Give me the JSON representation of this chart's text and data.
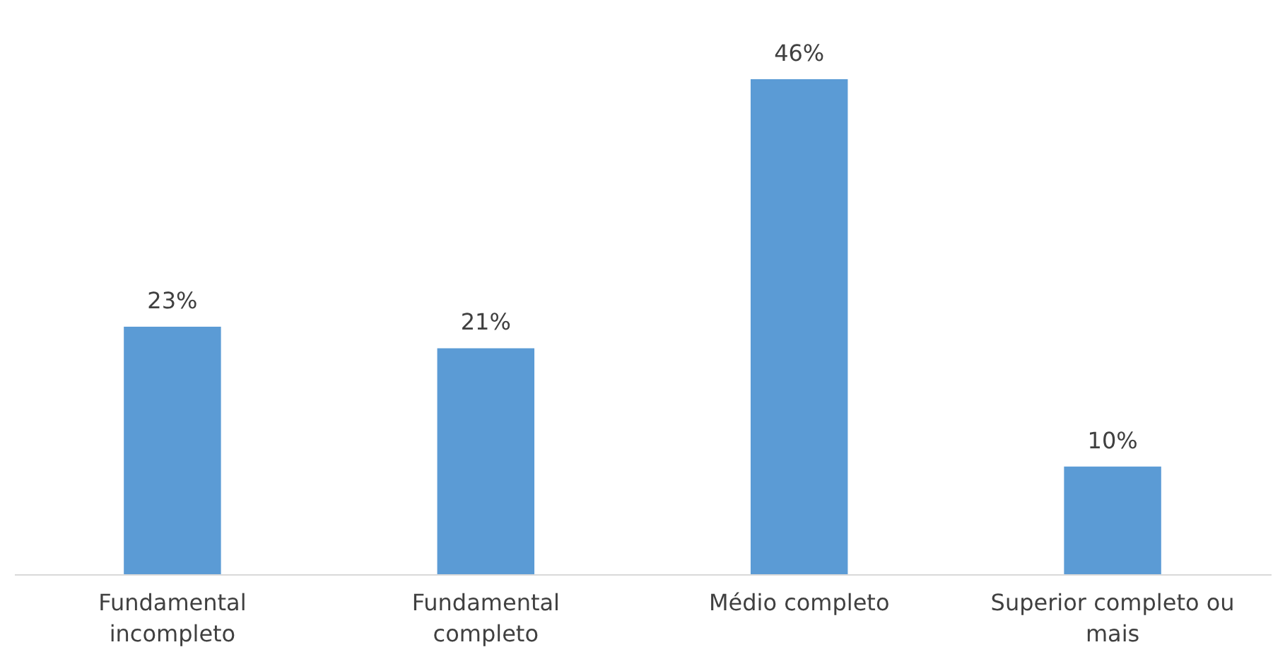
{
  "chart_data": {
    "type": "bar",
    "categories": [
      "Fundamental incompleto",
      "Fundamental completo",
      "Médio completo",
      "Superior completo ou mais"
    ],
    "values": [
      23,
      21,
      46,
      10
    ],
    "value_labels": [
      "23%",
      "21%",
      "46%",
      "10%"
    ],
    "color": "#5b9bd5"
  }
}
